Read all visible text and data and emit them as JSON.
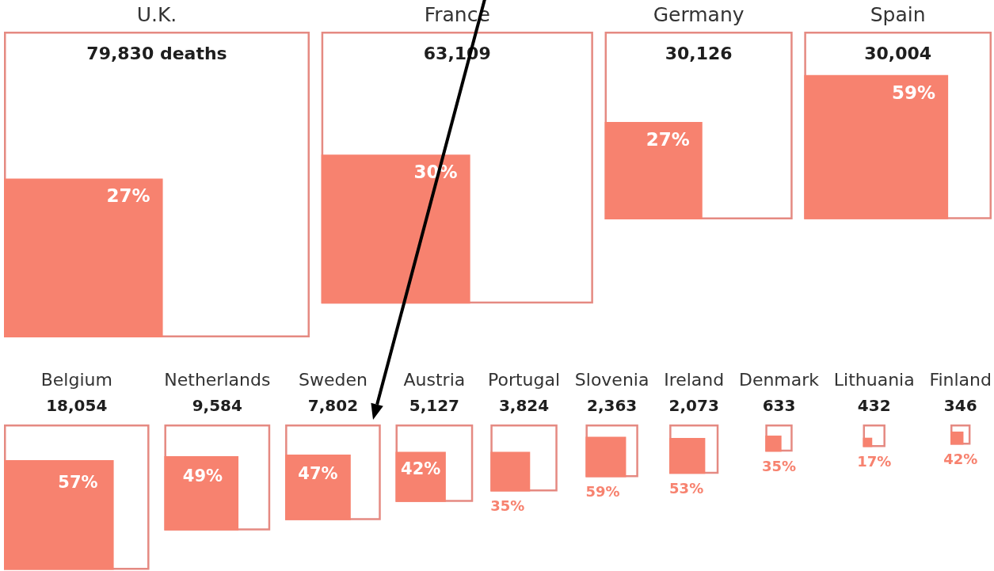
{
  "chart_data": {
    "type": "other",
    "categories": [
      "U.K.",
      "France",
      "Germany",
      "Spain",
      "Belgium",
      "Netherlands",
      "Sweden",
      "Austria",
      "Portugal",
      "Slovenia",
      "Ireland",
      "Denmark",
      "Lithuania",
      "Finland"
    ],
    "series": [
      {
        "color": "#e58a82",
        "values": [
          79830,
          63109,
          30126,
          30004,
          18054,
          9584,
          7802,
          5127,
          3824,
          2363,
          2073,
          633,
          432,
          346
        ],
        "value_labels": [
          "79,830 deaths",
          "63,109",
          "30,126",
          "30,004",
          "18,054",
          "9,584",
          "7,802",
          "5,127",
          "3,824",
          "2,363",
          "2,073",
          "633",
          "432",
          "346"
        ]
      },
      {
        "color": "#f7826f",
        "values": [
          27,
          30,
          27,
          59,
          57,
          49,
          47,
          42,
          35,
          59,
          53,
          35,
          17,
          42
        ],
        "value_labels": [
          "27%",
          "30%",
          "27%",
          "59%",
          "57%",
          "49%",
          "47%",
          "42%",
          "35%",
          "59%",
          "53%",
          "35%",
          "17%",
          "42%"
        ]
      }
    ]
  }
}
